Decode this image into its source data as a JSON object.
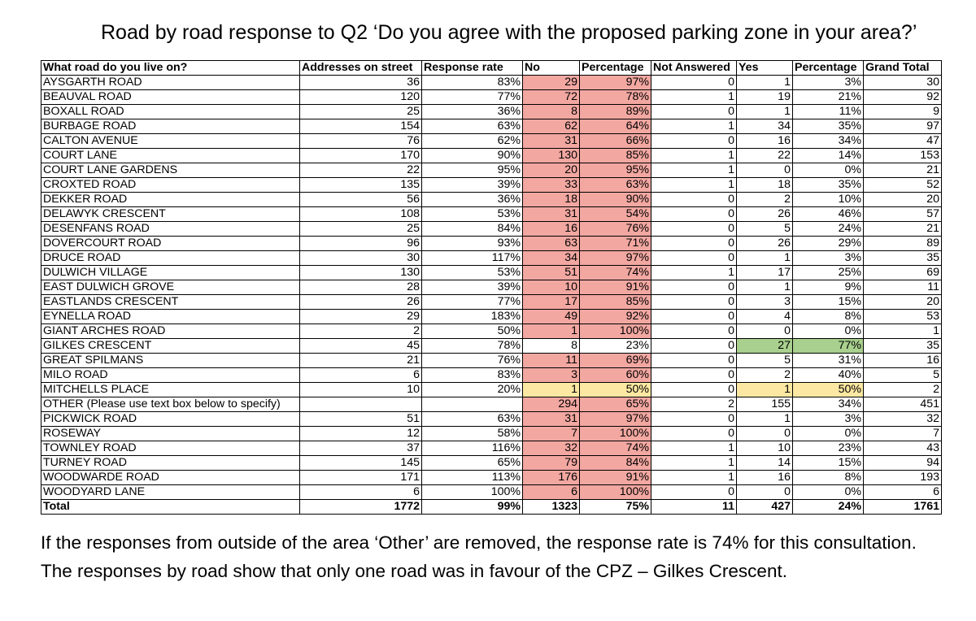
{
  "title": "Road by road response to Q2 ‘Do you agree with the proposed parking zone in your area?’",
  "table": {
    "headers": [
      "What road do you live on?",
      "Addresses on street",
      "Response rate",
      "No",
      "Percentage",
      "Not Answered",
      "Yes",
      "Percentage",
      "Grand Total"
    ],
    "rows": [
      {
        "road": "AYSGARTH ROAD",
        "addresses": "36",
        "rate": "83%",
        "no": "29",
        "no_pct": "97%",
        "not_answered": "0",
        "yes": "1",
        "yes_pct": "3%",
        "total": "30",
        "no_color": "red",
        "yes_color": ""
      },
      {
        "road": "BEAUVAL ROAD",
        "addresses": "120",
        "rate": "77%",
        "no": "72",
        "no_pct": "78%",
        "not_answered": "1",
        "yes": "19",
        "yes_pct": "21%",
        "total": "92",
        "no_color": "red",
        "yes_color": ""
      },
      {
        "road": "BOXALL ROAD",
        "addresses": "25",
        "rate": "36%",
        "no": "8",
        "no_pct": "89%",
        "not_answered": "0",
        "yes": "1",
        "yes_pct": "11%",
        "total": "9",
        "no_color": "red",
        "yes_color": ""
      },
      {
        "road": "BURBAGE ROAD",
        "addresses": "154",
        "rate": "63%",
        "no": "62",
        "no_pct": "64%",
        "not_answered": "1",
        "yes": "34",
        "yes_pct": "35%",
        "total": "97",
        "no_color": "red",
        "yes_color": ""
      },
      {
        "road": "CALTON AVENUE",
        "addresses": "76",
        "rate": "62%",
        "no": "31",
        "no_pct": "66%",
        "not_answered": "0",
        "yes": "16",
        "yes_pct": "34%",
        "total": "47",
        "no_color": "red",
        "yes_color": ""
      },
      {
        "road": "COURT LANE",
        "addresses": "170",
        "rate": "90%",
        "no": "130",
        "no_pct": "85%",
        "not_answered": "1",
        "yes": "22",
        "yes_pct": "14%",
        "total": "153",
        "no_color": "red",
        "yes_color": ""
      },
      {
        "road": "COURT LANE GARDENS",
        "addresses": "22",
        "rate": "95%",
        "no": "20",
        "no_pct": "95%",
        "not_answered": "1",
        "yes": "0",
        "yes_pct": "0%",
        "total": "21",
        "no_color": "red",
        "yes_color": ""
      },
      {
        "road": "CROXTED ROAD",
        "addresses": "135",
        "rate": "39%",
        "no": "33",
        "no_pct": "63%",
        "not_answered": "1",
        "yes": "18",
        "yes_pct": "35%",
        "total": "52",
        "no_color": "red",
        "yes_color": ""
      },
      {
        "road": "DEKKER ROAD",
        "addresses": "56",
        "rate": "36%",
        "no": "18",
        "no_pct": "90%",
        "not_answered": "0",
        "yes": "2",
        "yes_pct": "10%",
        "total": "20",
        "no_color": "red",
        "yes_color": ""
      },
      {
        "road": "DELAWYK CRESCENT",
        "addresses": "108",
        "rate": "53%",
        "no": "31",
        "no_pct": "54%",
        "not_answered": "0",
        "yes": "26",
        "yes_pct": "46%",
        "total": "57",
        "no_color": "red",
        "yes_color": ""
      },
      {
        "road": "DESENFANS ROAD",
        "addresses": "25",
        "rate": "84%",
        "no": "16",
        "no_pct": "76%",
        "not_answered": "0",
        "yes": "5",
        "yes_pct": "24%",
        "total": "21",
        "no_color": "red",
        "yes_color": ""
      },
      {
        "road": "DOVERCOURT ROAD",
        "addresses": "96",
        "rate": "93%",
        "no": "63",
        "no_pct": "71%",
        "not_answered": "0",
        "yes": "26",
        "yes_pct": "29%",
        "total": "89",
        "no_color": "red",
        "yes_color": ""
      },
      {
        "road": "DRUCE ROAD",
        "addresses": "30",
        "rate": "117%",
        "no": "34",
        "no_pct": "97%",
        "not_answered": "0",
        "yes": "1",
        "yes_pct": "3%",
        "total": "35",
        "no_color": "red",
        "yes_color": ""
      },
      {
        "road": "DULWICH VILLAGE",
        "addresses": "130",
        "rate": "53%",
        "no": "51",
        "no_pct": "74%",
        "not_answered": "1",
        "yes": "17",
        "yes_pct": "25%",
        "total": "69",
        "no_color": "red",
        "yes_color": ""
      },
      {
        "road": "EAST DULWICH GROVE",
        "addresses": "28",
        "rate": "39%",
        "no": "10",
        "no_pct": "91%",
        "not_answered": "0",
        "yes": "1",
        "yes_pct": "9%",
        "total": "11",
        "no_color": "red",
        "yes_color": ""
      },
      {
        "road": "EASTLANDS CRESCENT",
        "addresses": "26",
        "rate": "77%",
        "no": "17",
        "no_pct": "85%",
        "not_answered": "0",
        "yes": "3",
        "yes_pct": "15%",
        "total": "20",
        "no_color": "red",
        "yes_color": ""
      },
      {
        "road": "EYNELLA ROAD",
        "addresses": "29",
        "rate": "183%",
        "no": "49",
        "no_pct": "92%",
        "not_answered": "0",
        "yes": "4",
        "yes_pct": "8%",
        "total": "53",
        "no_color": "red",
        "yes_color": ""
      },
      {
        "road": "GIANT ARCHES ROAD",
        "addresses": "2",
        "rate": "50%",
        "no": "1",
        "no_pct": "100%",
        "not_answered": "0",
        "yes": "0",
        "yes_pct": "0%",
        "total": "1",
        "no_color": "red",
        "yes_color": ""
      },
      {
        "road": "GILKES CRESCENT",
        "addresses": "45",
        "rate": "78%",
        "no": "8",
        "no_pct": "23%",
        "not_answered": "0",
        "yes": "27",
        "yes_pct": "77%",
        "total": "35",
        "no_color": "",
        "yes_color": "green"
      },
      {
        "road": "GREAT SPILMANS",
        "addresses": "21",
        "rate": "76%",
        "no": "11",
        "no_pct": "69%",
        "not_answered": "0",
        "yes": "5",
        "yes_pct": "31%",
        "total": "16",
        "no_color": "red",
        "yes_color": ""
      },
      {
        "road": "MILO ROAD",
        "addresses": "6",
        "rate": "83%",
        "no": "3",
        "no_pct": "60%",
        "not_answered": "0",
        "yes": "2",
        "yes_pct": "40%",
        "total": "5",
        "no_color": "red",
        "yes_color": ""
      },
      {
        "road": "MITCHELLS PLACE",
        "addresses": "10",
        "rate": "20%",
        "no": "1",
        "no_pct": "50%",
        "not_answered": "0",
        "yes": "1",
        "yes_pct": "50%",
        "total": "2",
        "no_color": "yellow",
        "yes_color": "yellow"
      },
      {
        "road": "OTHER  (Please use text box below to specify)",
        "addresses": "",
        "rate": "",
        "no": "294",
        "no_pct": "65%",
        "not_answered": "2",
        "yes": "155",
        "yes_pct": "34%",
        "total": "451",
        "no_color": "red",
        "yes_color": ""
      },
      {
        "road": "PICKWICK ROAD",
        "addresses": "51",
        "rate": "63%",
        "no": "31",
        "no_pct": "97%",
        "not_answered": "0",
        "yes": "1",
        "yes_pct": "3%",
        "total": "32",
        "no_color": "red",
        "yes_color": ""
      },
      {
        "road": "ROSEWAY",
        "addresses": "12",
        "rate": "58%",
        "no": "7",
        "no_pct": "100%",
        "not_answered": "0",
        "yes": "0",
        "yes_pct": "0%",
        "total": "7",
        "no_color": "red",
        "yes_color": ""
      },
      {
        "road": "TOWNLEY ROAD",
        "addresses": "37",
        "rate": "116%",
        "no": "32",
        "no_pct": "74%",
        "not_answered": "1",
        "yes": "10",
        "yes_pct": "23%",
        "total": "43",
        "no_color": "red",
        "yes_color": ""
      },
      {
        "road": "TURNEY ROAD",
        "addresses": "145",
        "rate": "65%",
        "no": "79",
        "no_pct": "84%",
        "not_answered": "1",
        "yes": "14",
        "yes_pct": "15%",
        "total": "94",
        "no_color": "red",
        "yes_color": ""
      },
      {
        "road": "WOODWARDE ROAD",
        "addresses": "171",
        "rate": "113%",
        "no": "176",
        "no_pct": "91%",
        "not_answered": "1",
        "yes": "16",
        "yes_pct": "8%",
        "total": "193",
        "no_color": "red",
        "yes_color": ""
      },
      {
        "road": "WOODYARD LANE",
        "addresses": "6",
        "rate": "100%",
        "no": "6",
        "no_pct": "100%",
        "not_answered": "0",
        "yes": "0",
        "yes_pct": "0%",
        "total": "6",
        "no_color": "red",
        "yes_color": ""
      }
    ],
    "total": {
      "road": "Total",
      "addresses": "1772",
      "rate": "99%",
      "no": "1323",
      "no_pct": "75%",
      "not_answered": "11",
      "yes": "427",
      "yes_pct": "24%",
      "total": "1761"
    },
    "colors": {
      "red": "#f2a7a1",
      "green": "#a9d08e",
      "yellow": "#fce8a2"
    }
  },
  "paragraph": "If the responses from outside of the area ‘Other’ are removed, the response rate is 74% for this consultation. The responses by road show that only one road was in favour of the CPZ – Gilkes Crescent."
}
